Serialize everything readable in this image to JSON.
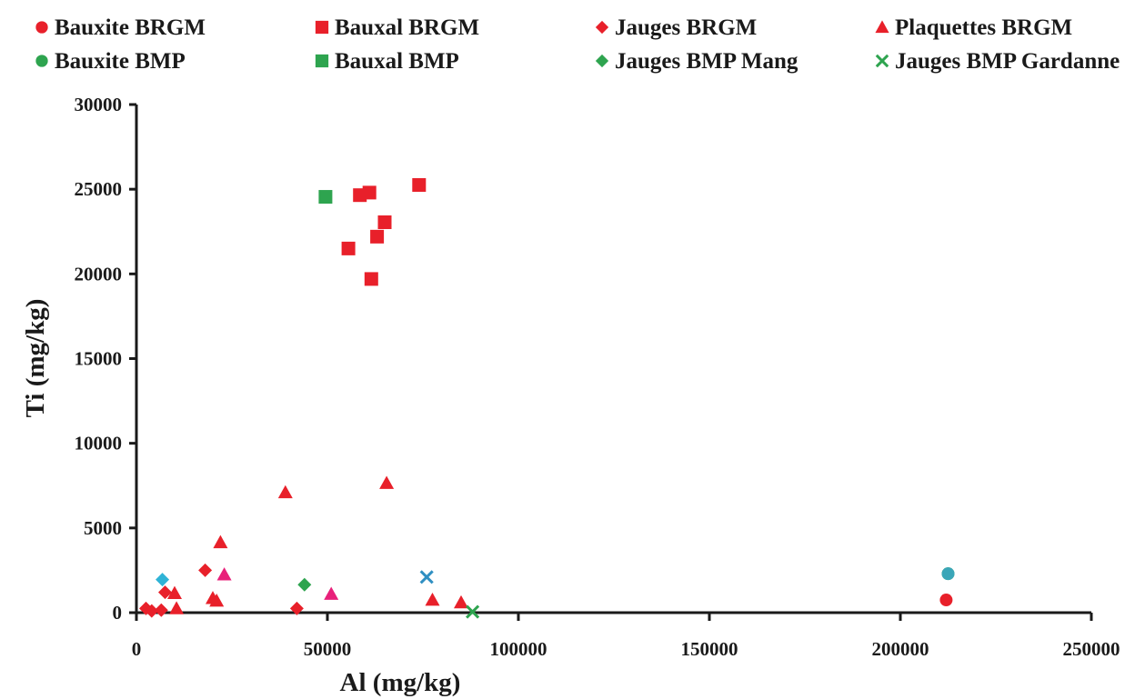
{
  "chart_data": {
    "type": "scatter",
    "title": "",
    "xlabel": "Al (mg/kg)",
    "ylabel": "Ti (mg/kg)",
    "xlim": [
      0,
      250000
    ],
    "ylim": [
      0,
      30000
    ],
    "x_ticks": [
      0,
      50000,
      100000,
      150000,
      200000,
      250000
    ],
    "y_ticks": [
      0,
      5000,
      10000,
      15000,
      20000,
      25000,
      30000
    ],
    "grid": false,
    "legend_position": "top",
    "series": [
      {
        "name": "Bauxite BRGM",
        "marker": "circle",
        "color": "#e8202a",
        "points": [
          [
            212000,
            750
          ]
        ]
      },
      {
        "name": "Bauxal BRGM",
        "marker": "square",
        "color": "#e8202a",
        "points": [
          [
            55500,
            21500
          ],
          [
            58500,
            24650
          ],
          [
            61000,
            24800
          ],
          [
            61500,
            19700
          ],
          [
            63000,
            22200
          ],
          [
            65000,
            23050
          ],
          [
            74000,
            25250
          ]
        ]
      },
      {
        "name": "Jauges BRGM",
        "marker": "diamond",
        "color": "#e8202a",
        "points": [
          [
            2500,
            250
          ],
          [
            4000,
            100
          ],
          [
            6500,
            150
          ],
          [
            7500,
            1200
          ],
          [
            18000,
            2500
          ],
          [
            42000,
            250
          ]
        ]
      },
      {
        "name": "Plaquettes BRGM",
        "marker": "triangle",
        "color": "#e8202a",
        "points": [
          [
            10000,
            1150
          ],
          [
            10500,
            250
          ],
          [
            20000,
            850
          ],
          [
            21000,
            700
          ],
          [
            22000,
            4150
          ],
          [
            39000,
            7100
          ],
          [
            65500,
            7650
          ],
          [
            77500,
            750
          ],
          [
            85000,
            600
          ]
        ]
      },
      {
        "name": "Bauxite BMP",
        "marker": "circle",
        "color": "#2ea44f",
        "points": [
          [
            212500,
            2300
          ]
        ]
      },
      {
        "name": "Bauxal BMP",
        "marker": "square",
        "color": "#2ea44f",
        "points": [
          [
            49500,
            24550
          ]
        ]
      },
      {
        "name": "Jauges BMP Mang",
        "marker": "diamond",
        "color": "#2ea44f",
        "points": [
          [
            44000,
            1650
          ]
        ]
      },
      {
        "name": "Jauges BMP Gardanne",
        "marker": "x",
        "color": "#2ea44f",
        "points": [
          [
            88000,
            50
          ]
        ]
      }
    ],
    "overlay_points": [
      {
        "marker": "diamond",
        "color": "#2fb3d6",
        "x": 6800,
        "y": 1950
      },
      {
        "marker": "triangle",
        "color": "#e8207a",
        "x": 23000,
        "y": 2250
      },
      {
        "marker": "triangle",
        "color": "#e8207a",
        "x": 51000,
        "y": 1100
      },
      {
        "marker": "x",
        "color": "#2f8fc2",
        "x": 76000,
        "y": 2100
      },
      {
        "marker": "circle",
        "color": "#3aa6b8",
        "x": 212500,
        "y": 2300
      }
    ]
  }
}
